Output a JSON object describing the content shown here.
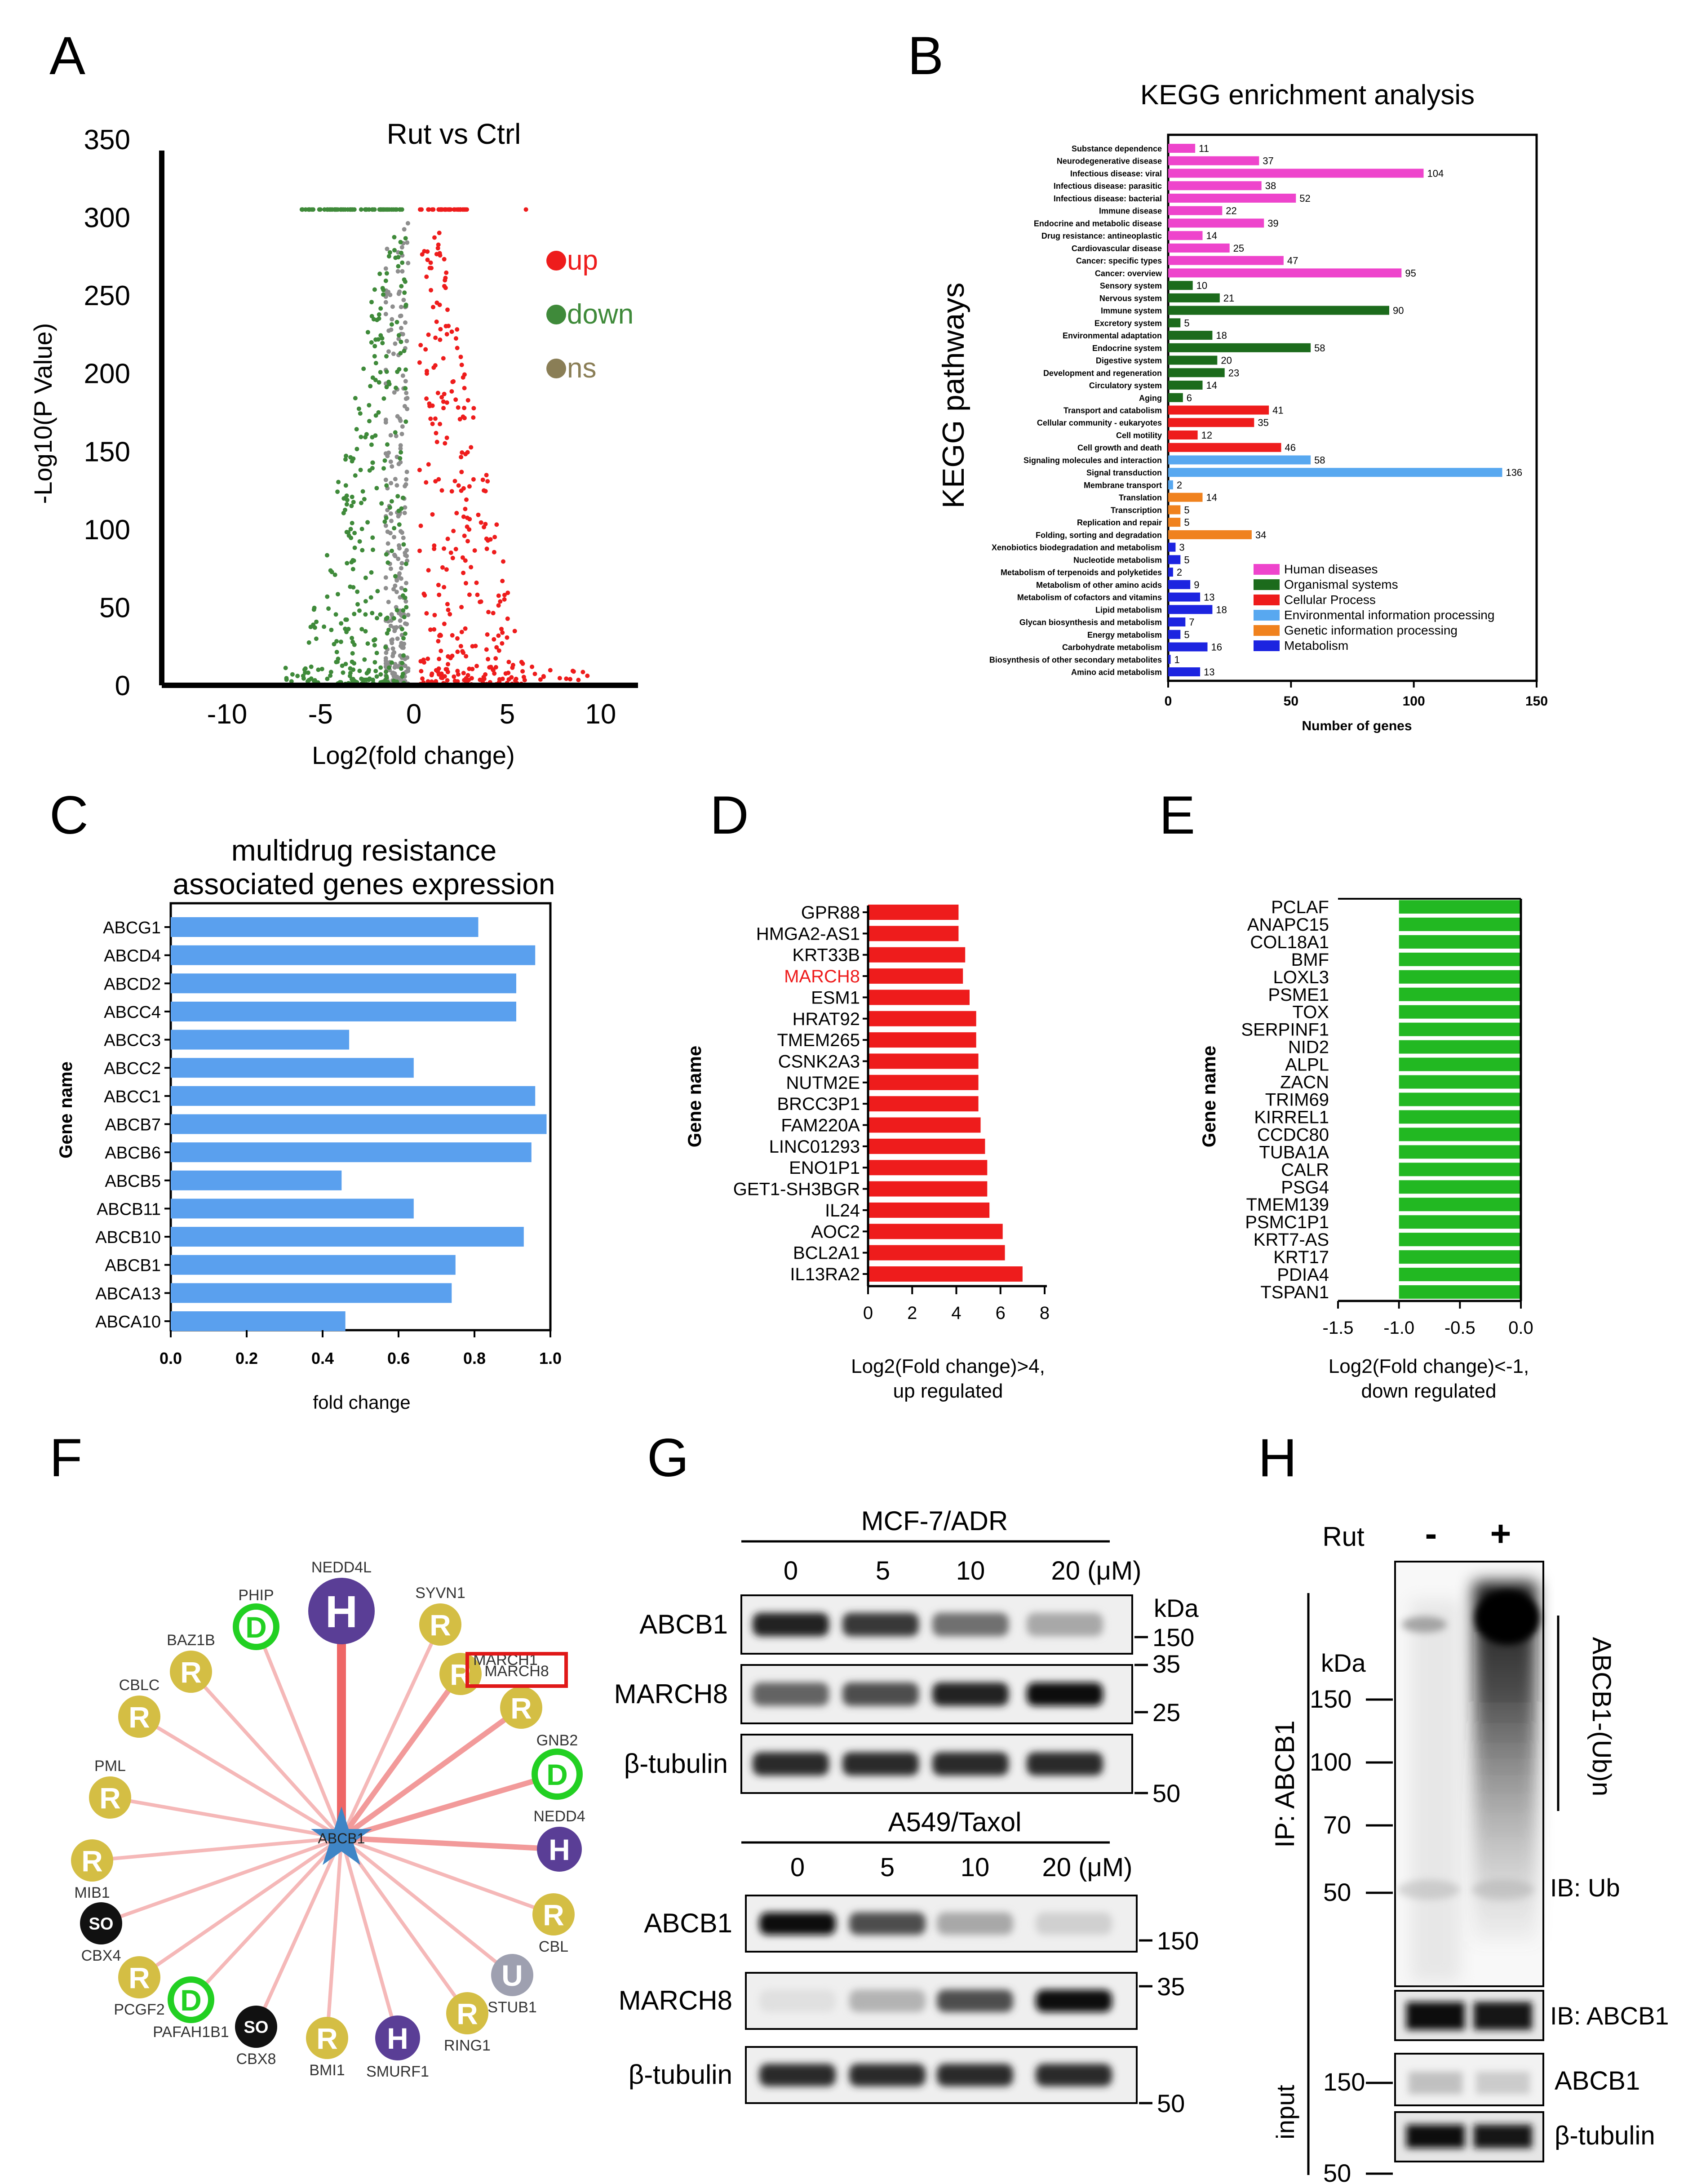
{
  "panel_letters": [
    "A",
    "B",
    "C",
    "D",
    "E",
    "F",
    "G",
    "H"
  ],
  "colors": {
    "up": "#ee1c1c",
    "down": "#3f8a3a",
    "ns": "#8e8e8e",
    "blueBar": "#5aa0ee",
    "red": "#ee1c1c",
    "green": "#22b822",
    "pink": "#ee44cc",
    "dkgreen": "#1c6b1c",
    "envBlue": "#58a8f0",
    "orange": "#f0821e",
    "metBlue": "#1c24e0"
  },
  "volcano": {
    "title": "Rut vs Ctrl",
    "xlabel": "Log2(fold change)",
    "ylabel": "-Log10(P Value)",
    "yticks": [
      "0",
      "50",
      "100",
      "150",
      "200",
      "250",
      "300",
      "350"
    ],
    "xticks": [
      "-10",
      "-5",
      "0",
      "5",
      "10"
    ],
    "legend": [
      "up",
      "down",
      "ns"
    ]
  },
  "chart_data": [
    {
      "type": "bar",
      "title": "KEGG enrichment analysis",
      "xlabel": "Number of genes",
      "ylabel": "KEGG pathways",
      "xlim": [
        0,
        150
      ],
      "xticks": [
        "0",
        "50",
        "100",
        "150"
      ],
      "legend": [
        "Human diseases",
        "Organismal systems",
        "Cellular Process",
        "Environmental information processing",
        "Genetic information processing",
        "Metabolism"
      ],
      "categories": [
        "Substance dependence",
        "Neurodegenerative disease",
        "Infectious disease: viral",
        "Infectious disease: parasitic",
        "Infectious disease: bacterial",
        "Immune disease",
        "Endocrine and metabolic disease",
        "Drug resistance: antineoplastic",
        "Cardiovascular disease",
        "Cancer: specific types",
        "Cancer: overview",
        "Sensory system",
        "Nervous system",
        "Immune system",
        "Excretory system",
        "Environmental adaptation",
        "Endocrine system",
        "Digestive system",
        "Development and regeneration",
        "Circulatory system",
        "Aging",
        "Transport and catabolism",
        "Cellular community - eukaryotes",
        "Cell motility",
        "Cell growth and death",
        "Signaling molecules and interaction",
        "Signal transduction",
        "Membrane transport",
        "Translation",
        "Transcription",
        "Replication and repair",
        "Folding, sorting and degradation",
        "Xenobiotics biodegradation and metabolism",
        "Nucleotide metabolism",
        "Metabolism of terpenoids and polyketides",
        "Metabolism of other amino acids",
        "Metabolism of cofactors and vitamins",
        "Lipid metabolism",
        "Glycan biosynthesis and metabolism",
        "Energy metabolism",
        "Carbohydrate metabolism",
        "Biosynthesis of other secondary metabolites",
        "Amino acid metabolism"
      ],
      "values": [
        11,
        37,
        104,
        38,
        52,
        22,
        39,
        14,
        25,
        47,
        95,
        10,
        21,
        90,
        5,
        18,
        58,
        20,
        23,
        14,
        6,
        41,
        35,
        12,
        46,
        58,
        136,
        2,
        14,
        5,
        5,
        34,
        3,
        5,
        2,
        9,
        13,
        18,
        7,
        5,
        16,
        1,
        13
      ],
      "value_labels": [
        "11",
        "37",
        "104",
        "38",
        "52",
        "22",
        "39",
        "14",
        "25",
        "47",
        "95",
        "10",
        "21",
        "90",
        "5",
        "18",
        "58",
        "20",
        "23",
        "14",
        "6",
        "41",
        "35",
        "12",
        "46",
        "58",
        "136",
        "2",
        "14",
        "5",
        "5",
        "34",
        "3",
        "5",
        "2",
        "9",
        "13",
        "18",
        "7",
        "5",
        "16",
        "1",
        "13"
      ],
      "groups": [
        0,
        0,
        0,
        0,
        0,
        0,
        0,
        0,
        0,
        0,
        0,
        1,
        1,
        1,
        1,
        1,
        1,
        1,
        1,
        1,
        1,
        2,
        2,
        2,
        2,
        3,
        3,
        3,
        4,
        4,
        4,
        4,
        5,
        5,
        5,
        5,
        5,
        5,
        5,
        5,
        5,
        5,
        5
      ]
    },
    {
      "type": "bar",
      "title": "multidrug resistance associated genes expression",
      "title_lines": [
        "multidrug resistance",
        "associated genes expression"
      ],
      "xlabel": "fold change",
      "ylabel": "Gene name",
      "xlim": [
        0,
        1.0
      ],
      "xticks": [
        "0.0",
        "0.2",
        "0.4",
        "0.6",
        "0.8",
        "1.0"
      ],
      "categories": [
        "ABCG1",
        "ABCD4",
        "ABCD2",
        "ABCC4",
        "ABCC3",
        "ABCC2",
        "ABCC1",
        "ABCB7",
        "ABCB6",
        "ABCB5",
        "ABCB11",
        "ABCB10",
        "ABCB1",
        "ABCA13",
        "ABCA10"
      ],
      "values": [
        0.81,
        0.96,
        0.91,
        0.91,
        0.47,
        0.64,
        0.96,
        0.99,
        0.95,
        0.45,
        0.64,
        0.93,
        0.75,
        0.74,
        0.46
      ]
    },
    {
      "type": "bar",
      "title": "",
      "xlabel_lines": [
        "Log2(Fold change)>4,",
        "up regulated"
      ],
      "ylabel": "Gene name",
      "xlim": [
        0,
        8
      ],
      "xticks": [
        "0",
        "2",
        "4",
        "6",
        "8"
      ],
      "highlight": "MARCH8",
      "categories": [
        "GPR88",
        "HMGA2-AS1",
        "KRT33B",
        "MARCH8",
        "ESM1",
        "HRAT92",
        "TMEM265",
        "CSNK2A3",
        "NUTM2E",
        "BRCC3P1",
        "FAM220A",
        "LINC01293",
        "ENO1P1",
        "GET1-SH3BGR",
        "IL24",
        "AOC2",
        "BCL2A1",
        "IL13RA2"
      ],
      "values": [
        4.1,
        4.1,
        4.4,
        4.3,
        4.6,
        4.9,
        4.9,
        5.0,
        5.0,
        5.0,
        5.1,
        5.3,
        5.4,
        5.4,
        5.5,
        6.1,
        6.2,
        7.0
      ]
    },
    {
      "type": "bar",
      "title": "",
      "xlabel_lines": [
        "Log2(Fold change)<-1,",
        "down regulated"
      ],
      "ylabel": "Gene name",
      "xlim": [
        -1.5,
        0.0
      ],
      "xticks": [
        "-1.5",
        "-1.0",
        "-0.5",
        "0.0"
      ],
      "categories": [
        "PCLAF",
        "ANAPC15",
        "COL18A1",
        "BMF",
        "LOXL3",
        "PSME1",
        "TOX",
        "SERPINF1",
        "NID2",
        "ALPL",
        "ZACN",
        "TRIM69",
        "KIRREL1",
        "CCDC80",
        "TUBA1A",
        "CALR",
        "PSG4",
        "TMEM139",
        "PSMC1P1",
        "KRT7-AS",
        "KRT17",
        "PDIA4",
        "TSPAN1"
      ],
      "values": [
        -1.0,
        -1.0,
        -1.0,
        -1.0,
        -1.0,
        -1.0,
        -1.0,
        -1.0,
        -1.0,
        -1.0,
        -1.0,
        -1.0,
        -1.0,
        -1.0,
        -1.0,
        -1.0,
        -1.0,
        -1.0,
        -1.0,
        -1.0,
        -1.0,
        -1.0,
        -1.0
      ]
    }
  ],
  "network": {
    "center": "ABCB1",
    "highlight_box": "MARCH8",
    "nodes": [
      {
        "label": "NEDD4L",
        "letter": "H",
        "color": "#5a3e96"
      },
      {
        "label": "SYVN1",
        "letter": "R",
        "color": "#d4be44"
      },
      {
        "label": "MARCH1",
        "letter": "R",
        "color": "#d4be44"
      },
      {
        "label": "MARCH8",
        "letter": "R",
        "color": "#d4be44"
      },
      {
        "label": "GNB2",
        "letter": "D",
        "color": "#22d022"
      },
      {
        "label": "NEDD4",
        "letter": "H",
        "color": "#5a3e96"
      },
      {
        "label": "CBL",
        "letter": "R",
        "color": "#d4be44"
      },
      {
        "label": "STUB1",
        "letter": "U",
        "color": "#9ea0b0"
      },
      {
        "label": "RING1",
        "letter": "R",
        "color": "#d4be44"
      },
      {
        "label": "SMURF1",
        "letter": "H",
        "color": "#5a3e96"
      },
      {
        "label": "BMI1",
        "letter": "R",
        "color": "#d4be44"
      },
      {
        "label": "CBX8",
        "letter": "SO",
        "color": "#111111"
      },
      {
        "label": "PAFAH1B1",
        "letter": "D",
        "color": "#22d022"
      },
      {
        "label": "PCGF2",
        "letter": "R",
        "color": "#d4be44"
      },
      {
        "label": "CBX4",
        "letter": "SO",
        "color": "#111111"
      },
      {
        "label": "MIB1",
        "letter": "R",
        "color": "#d4be44"
      },
      {
        "label": "PML",
        "letter": "R",
        "color": "#d4be44"
      },
      {
        "label": "CBLC",
        "letter": "R",
        "color": "#d4be44"
      },
      {
        "label": "BAZ1B",
        "letter": "R",
        "color": "#d4be44"
      },
      {
        "label": "PHIP",
        "letter": "D",
        "color": "#22d022"
      }
    ]
  },
  "westernG": {
    "mcf_title": "MCF-7/ADR",
    "a549_title": "A549/Taxol",
    "doses": [
      "0",
      "5",
      "10",
      "20 (μM)"
    ],
    "kda": "kDa",
    "rows_mcf": [
      {
        "label": "ABCB1",
        "marker": "150"
      },
      {
        "label": "MARCH8",
        "marker_top": "35",
        "marker": "25"
      },
      {
        "label": "β-tubulin",
        "marker": "50"
      }
    ],
    "rows_a549": [
      {
        "label": "ABCB1",
        "marker": "150"
      },
      {
        "label": "MARCH8",
        "marker": "35"
      },
      {
        "label": "β-tubulin",
        "marker": "50"
      }
    ],
    "intensities_mcf": [
      [
        0.9,
        0.8,
        0.55,
        0.3
      ],
      [
        0.6,
        0.7,
        0.9,
        1.0
      ],
      [
        0.85,
        0.85,
        0.85,
        0.85
      ]
    ],
    "intensities_a549": [
      [
        1.0,
        0.7,
        0.3,
        0.12
      ],
      [
        0.05,
        0.25,
        0.7,
        1.0
      ],
      [
        0.85,
        0.85,
        0.85,
        0.85
      ]
    ]
  },
  "westernH": {
    "rut": "Rut",
    "minus": "-",
    "plus": "+",
    "kda": "kDa",
    "markers": [
      "150",
      "100",
      "70",
      "50"
    ],
    "ip_label": "IP: ABCB1",
    "smear_label": "ABCB1-(Ub)n",
    "ib_ub": "IB: Ub",
    "ib_abcb1": "IB: ABCB1",
    "input_label": "input",
    "input_rows": [
      {
        "label": "ABCB1",
        "marker": "150"
      },
      {
        "label": "β-tubulin",
        "marker": "50"
      }
    ]
  }
}
